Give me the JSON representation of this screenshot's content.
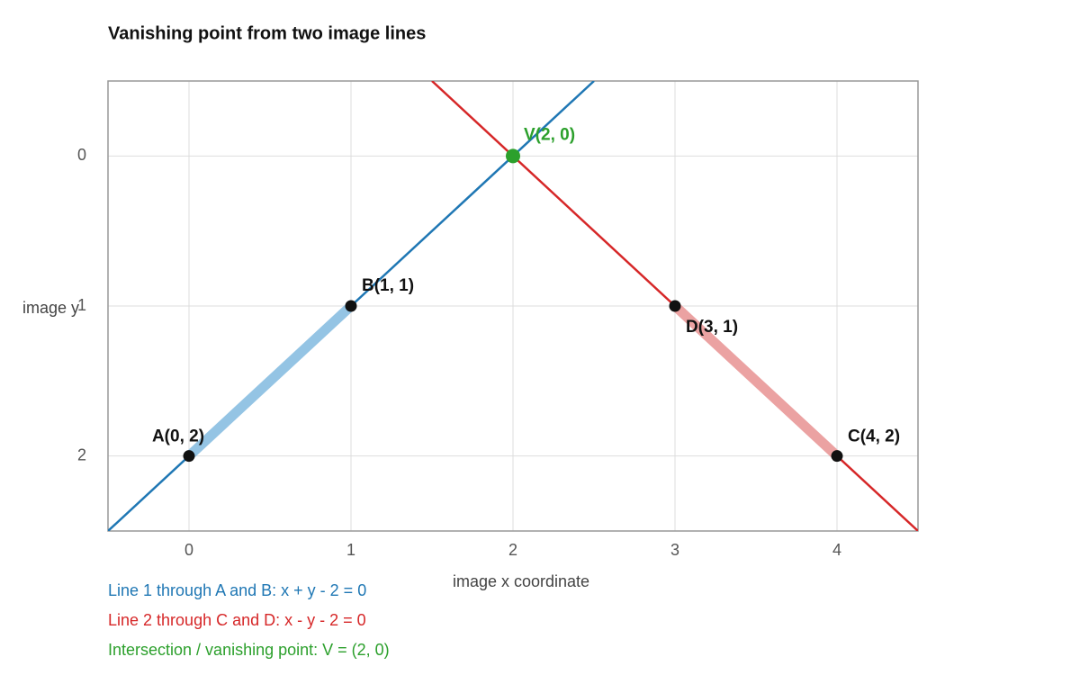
{
  "chart_data": {
    "type": "line",
    "title": "Vanishing point from two image lines",
    "x_label": "image x coordinate",
    "y_label": "image y",
    "xlim": [
      -0.5,
      4.5
    ],
    "ylim": [
      -0.5,
      2.5
    ],
    "y_inverted": true,
    "xticks": [
      0,
      1,
      2,
      3,
      4
    ],
    "yticks": [
      0,
      1,
      2
    ],
    "grid": true,
    "series": [
      {
        "color": "#1f77b4",
        "line_width": 2.5,
        "x": [
          -0.5,
          2.5
        ],
        "values": [
          2.5,
          -0.5
        ]
      },
      {
        "color": "#94c4e4",
        "line_width": 11,
        "x": [
          0,
          1
        ],
        "values": [
          2,
          1
        ]
      },
      {
        "color": "#d62728",
        "line_width": 2.5,
        "x": [
          1.5,
          4.5
        ],
        "values": [
          -0.5,
          2.5
        ]
      },
      {
        "color": "#eba2a2",
        "line_width": 11,
        "x": [
          3,
          4
        ],
        "values": [
          1,
          2
        ]
      }
    ],
    "points": [
      {
        "label": "A(0, 2)",
        "x": 0,
        "y": 2,
        "color": "#111111"
      },
      {
        "label": "B(1, 1)",
        "x": 1,
        "y": 1,
        "color": "#111111"
      },
      {
        "label": "D(3, 1)",
        "x": 3,
        "y": 1,
        "color": "#111111"
      },
      {
        "label": "C(4, 2)",
        "x": 4,
        "y": 2,
        "color": "#111111"
      },
      {
        "label": "V(2, 0)",
        "x": 2,
        "y": 0,
        "color": "#2ca02c"
      }
    ],
    "annotations": [
      {
        "text": "Line 1 through A and B:  x + y - 2 = 0",
        "color": "#1f77b4"
      },
      {
        "text": "Line 2 through C and D:  x - y - 2 = 0",
        "color": "#d62728"
      },
      {
        "text": "Intersection / vanishing point:  V = (2, 0)",
        "color": "#2ca02c"
      }
    ]
  }
}
